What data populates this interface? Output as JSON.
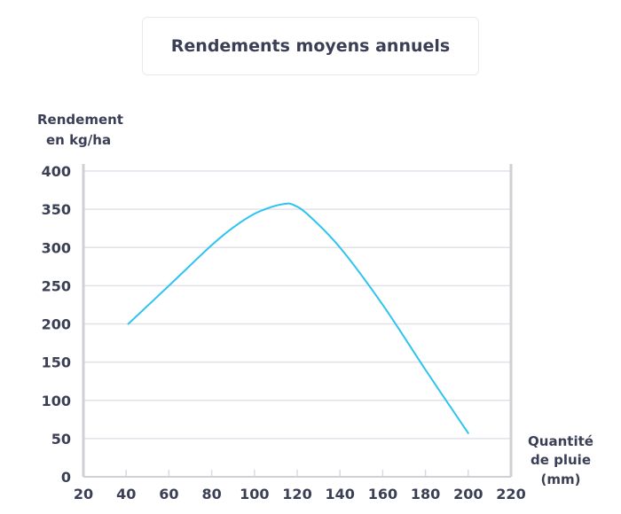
{
  "chart_data": {
    "type": "line",
    "title": "Rendements moyens annuels",
    "ylabel_lines": [
      "Rendement",
      "en kg/ha"
    ],
    "xlabel_lines": [
      "Quantité",
      "de pluie",
      "(mm)"
    ],
    "xlim": [
      20,
      220
    ],
    "ylim": [
      0,
      400
    ],
    "x_ticks": [
      20,
      40,
      60,
      80,
      100,
      120,
      140,
      160,
      180,
      200,
      220
    ],
    "y_ticks": [
      0,
      50,
      100,
      150,
      200,
      250,
      300,
      350,
      400
    ],
    "grid": true,
    "line_color": "#2ec3f0",
    "series": [
      {
        "x": [
          41,
          60,
          80,
          90,
          100,
          108,
          114,
          118,
          125,
          140,
          160,
          180,
          200
        ],
        "values": [
          200,
          250,
          303,
          326,
          344,
          353,
          357,
          356,
          343,
          300,
          225,
          140,
          57
        ]
      }
    ]
  }
}
